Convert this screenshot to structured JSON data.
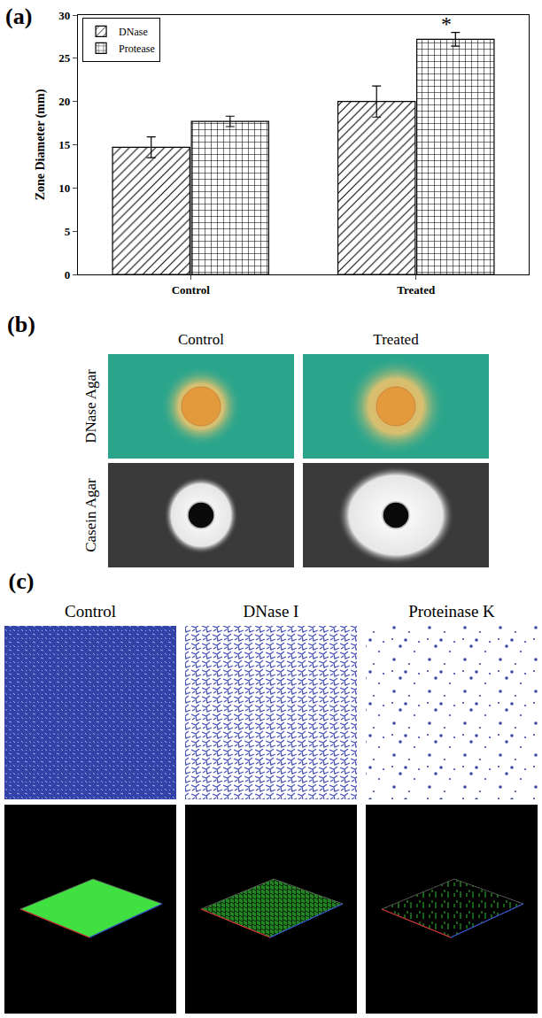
{
  "chart_data": {
    "type": "bar",
    "panel_label": "(a)",
    "y_label": "Zone Diameter (mm)",
    "categories": [
      "Control",
      "Treated"
    ],
    "series": [
      {
        "name": "DNase",
        "color": "#000000",
        "marker": "diagonal",
        "values": [
          14.7,
          20.0
        ],
        "errors": [
          1.2,
          1.8
        ]
      },
      {
        "name": "Protease",
        "color": "#000000",
        "marker": "crosshatch",
        "values": [
          17.7,
          27.2
        ],
        "errors": [
          0.6,
          0.8
        ]
      }
    ],
    "ylim": [
      0,
      30
    ],
    "yticks": [
      0,
      5,
      10,
      15,
      20,
      25,
      30
    ],
    "grid": false,
    "legend": "upper left",
    "annotations": [
      {
        "text": "*",
        "category": "Treated",
        "series": "Protease"
      }
    ]
  },
  "panels": [
    {
      "label": "(b)",
      "columns": [
        "Control",
        "Treated"
      ],
      "rows": [
        "DNase Agar",
        "Casein Agar"
      ]
    },
    {
      "label": "(c)",
      "columns": [
        "Control",
        "DNase I",
        "Proteinase K"
      ]
    }
  ]
}
